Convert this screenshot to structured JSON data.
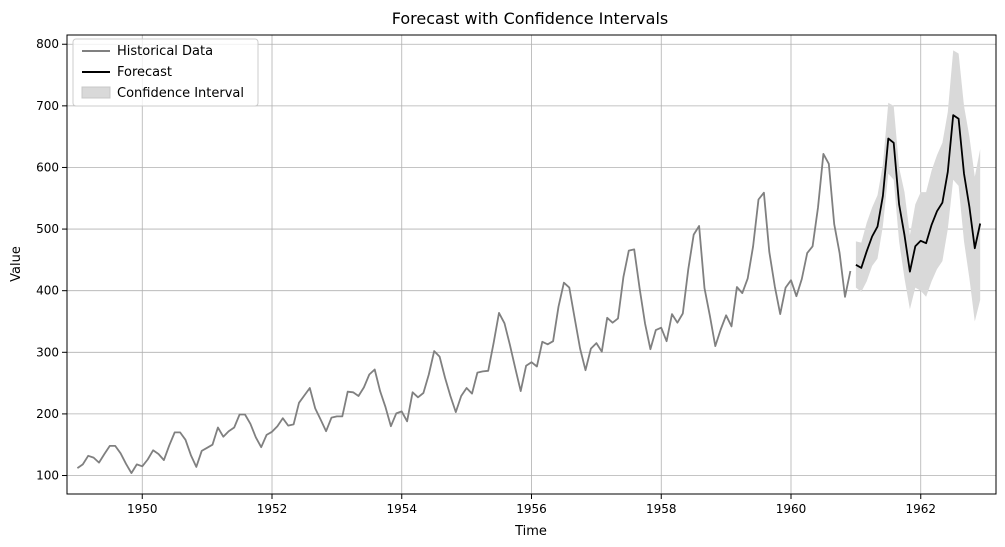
{
  "chart_data": {
    "type": "line",
    "title": "Forecast with Confidence Intervals",
    "xlabel": "Time",
    "ylabel": "Value",
    "xlim": [
      1948.84,
      1963.16
    ],
    "ylim": [
      70,
      815
    ],
    "x_ticks": [
      1950,
      1952,
      1954,
      1956,
      1958,
      1960,
      1962
    ],
    "x_tick_labels": [
      "1950",
      "1952",
      "1954",
      "1956",
      "1958",
      "1960",
      "1962"
    ],
    "y_ticks": [
      100,
      200,
      300,
      400,
      500,
      600,
      700,
      800
    ],
    "y_tick_labels": [
      "100",
      "200",
      "300",
      "400",
      "500",
      "600",
      "700",
      "800"
    ],
    "grid": true,
    "legend_position": "top-left",
    "colors": {
      "historical": "#808080",
      "forecast": "#000000",
      "ci_fill": "#d9d9d9",
      "grid": "#b0b0b0"
    },
    "series": [
      {
        "name": "Historical Data",
        "start_year": 1949,
        "step": 0.08333,
        "values": [
          112,
          118,
          132,
          129,
          121,
          135,
          148,
          148,
          136,
          119,
          104,
          118,
          115,
          126,
          141,
          135,
          125,
          149,
          170,
          170,
          158,
          133,
          114,
          140,
          145,
          150,
          178,
          163,
          172,
          178,
          199,
          199,
          184,
          162,
          146,
          166,
          171,
          180,
          193,
          181,
          183,
          218,
          230,
          242,
          209,
          191,
          172,
          194,
          196,
          196,
          236,
          235,
          229,
          243,
          264,
          272,
          237,
          211,
          180,
          201,
          204,
          188,
          235,
          227,
          234,
          264,
          302,
          293,
          259,
          229,
          203,
          229,
          242,
          233,
          267,
          269,
          270,
          315,
          364,
          347,
          312,
          274,
          237,
          278,
          284,
          277,
          317,
          313,
          318,
          374,
          413,
          405,
          355,
          306,
          271,
          306,
          315,
          301,
          356,
          348,
          355,
          422,
          465,
          467,
          404,
          347,
          305,
          336,
          340,
          318,
          362,
          348,
          363,
          435,
          491,
          505,
          404,
          359,
          310,
          337,
          360,
          342,
          406,
          396,
          420,
          472,
          548,
          559,
          463,
          407,
          362,
          405,
          417,
          391,
          419,
          461,
          472,
          535,
          622,
          606,
          508,
          461,
          390,
          432
        ]
      },
      {
        "name": "Forecast",
        "start_year": 1961,
        "step": 0.08333,
        "values": [
          442,
          437,
          464,
          488,
          504,
          554,
          647,
          640,
          540,
          490,
          431,
          472,
          481,
          477,
          507,
          529,
          543,
          593,
          685,
          679,
          590,
          536,
          469,
          509
        ]
      }
    ],
    "confidence_interval": {
      "name": "Confidence Interval",
      "start_year": 1961,
      "step": 0.08333,
      "lower": [
        405,
        398,
        415,
        440,
        452,
        505,
        590,
        580,
        480,
        420,
        370,
        405,
        400,
        390,
        415,
        435,
        448,
        500,
        580,
        570,
        480,
        420,
        350,
        385
      ],
      "upper": [
        480,
        478,
        510,
        535,
        555,
        605,
        705,
        700,
        600,
        560,
        490,
        540,
        560,
        560,
        595,
        620,
        640,
        690,
        790,
        785,
        700,
        650,
        585,
        630
      ]
    },
    "legend": [
      "Historical Data",
      "Forecast",
      "Confidence Interval"
    ]
  }
}
